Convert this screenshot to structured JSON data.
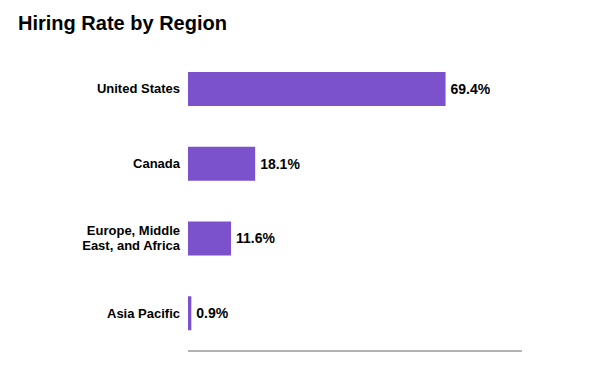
{
  "chart_data": {
    "type": "bar",
    "title": "Hiring Rate by Region",
    "orientation": "horizontal",
    "categories": [
      "United States",
      "Canada",
      "Europe, Middle\nEast, and Africa",
      "Asia Pacific"
    ],
    "values": [
      69.4,
      18.1,
      11.6,
      0.9
    ],
    "value_labels": [
      "69.4%",
      "18.1%",
      "11.6%",
      "0.9%"
    ],
    "data_labels": true,
    "color": "#7B52CC",
    "xlim": [
      0,
      90
    ],
    "tick_labels": "y"
  }
}
